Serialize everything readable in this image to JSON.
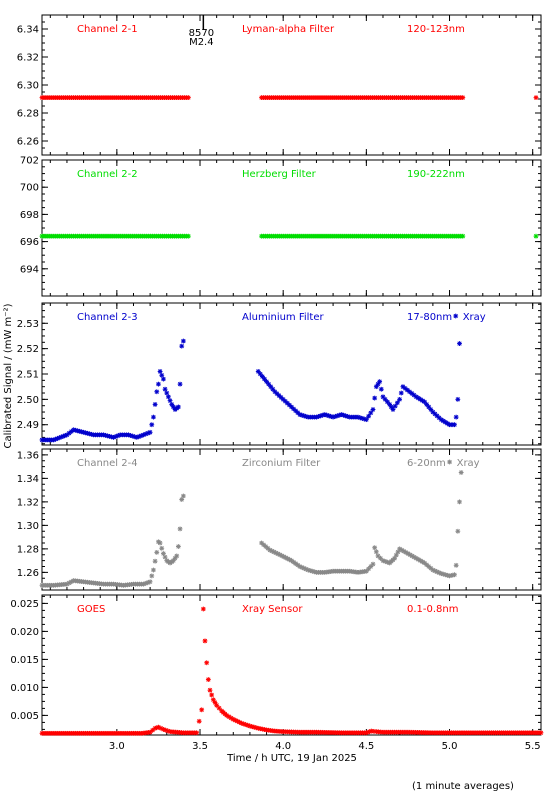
{
  "footer_note": "(1 minute averages)",
  "chart_data": {
    "type": "scatter",
    "xlabel": "Time / h UTC, 19 Jan 2025",
    "ylabel": "Calibrated Signal / (mW m⁻²)",
    "xlim": [
      2.55,
      5.55
    ],
    "x_ticks": [
      3.0,
      3.5,
      4.0,
      4.5,
      5.0,
      5.5
    ],
    "x_tick_labels": [
      "3.0",
      "3.5",
      "4.0",
      "4.5",
      "5.0",
      "5.5"
    ],
    "event_marker": {
      "x": 3.52,
      "label_top": "8570",
      "label_bottom": "M2.4"
    },
    "panels": [
      {
        "name": "Channel 2-1",
        "filter": "Lyman-alpha Filter",
        "band": "120-123nm",
        "band_suffix": "",
        "color": "#ff0000",
        "ylim": [
          6.25,
          6.35
        ],
        "y_ticks": [
          6.26,
          6.28,
          6.3,
          6.32,
          6.34
        ],
        "y_tick_labels": [
          "6.26",
          "6.28",
          "6.30",
          "6.32",
          "6.34"
        ],
        "points": [
          [
            2.55,
            6.291
          ],
          [
            3.0,
            6.291
          ],
          [
            3.43,
            6.291
          ],
          [
            3.87,
            6.291
          ],
          [
            4.5,
            6.291
          ],
          [
            5.08,
            6.291
          ],
          [
            5.52,
            6.291
          ]
        ],
        "gaps": [
          [
            3.43,
            3.87
          ],
          [
            5.08,
            5.52
          ]
        ]
      },
      {
        "name": "Channel 2-2",
        "filter": "Herzberg Filter",
        "band": "190-222nm",
        "band_suffix": "",
        "color": "#00dd00",
        "ylim": [
          692,
          702
        ],
        "y_ticks": [
          694,
          696,
          698,
          700,
          702
        ],
        "y_tick_labels": [
          "694",
          "696",
          "698",
          "700",
          "702"
        ],
        "points": [
          [
            2.55,
            696.4
          ],
          [
            3.0,
            696.4
          ],
          [
            3.43,
            696.4
          ],
          [
            3.87,
            696.4
          ],
          [
            4.5,
            696.4
          ],
          [
            5.08,
            696.4
          ],
          [
            5.52,
            696.4
          ]
        ],
        "gaps": [
          [
            3.43,
            3.87
          ],
          [
            5.08,
            5.52
          ]
        ]
      },
      {
        "name": "Channel 2-3",
        "filter": "Aluminium Filter",
        "band": "17-80nm",
        "band_suffix": "Xray",
        "color": "#0000cc",
        "ylim": [
          2.482,
          2.538
        ],
        "y_ticks": [
          2.49,
          2.5,
          2.51,
          2.52,
          2.53
        ],
        "y_tick_labels": [
          "2.49",
          "2.50",
          "2.51",
          "2.52",
          "2.53"
        ],
        "points": [
          [
            2.55,
            2.484
          ],
          [
            2.62,
            2.484
          ],
          [
            2.7,
            2.486
          ],
          [
            2.74,
            2.488
          ],
          [
            2.8,
            2.487
          ],
          [
            2.86,
            2.486
          ],
          [
            2.92,
            2.486
          ],
          [
            2.98,
            2.485
          ],
          [
            3.02,
            2.486
          ],
          [
            3.07,
            2.486
          ],
          [
            3.12,
            2.485
          ],
          [
            3.16,
            2.486
          ],
          [
            3.2,
            2.487
          ],
          [
            3.22,
            2.493
          ],
          [
            3.24,
            2.503
          ],
          [
            3.25,
            2.506
          ],
          [
            3.26,
            2.511
          ],
          [
            3.28,
            2.508
          ],
          [
            3.29,
            2.504
          ],
          [
            3.31,
            2.501
          ],
          [
            3.33,
            2.498
          ],
          [
            3.35,
            2.496
          ],
          [
            3.37,
            2.497
          ],
          [
            3.38,
            2.506
          ],
          [
            3.39,
            2.521
          ],
          [
            3.4,
            2.523
          ],
          [
            3.85,
            2.511
          ],
          [
            3.9,
            2.507
          ],
          [
            3.95,
            2.503
          ],
          [
            4.0,
            2.5
          ],
          [
            4.05,
            2.497
          ],
          [
            4.1,
            2.494
          ],
          [
            4.15,
            2.493
          ],
          [
            4.2,
            2.493
          ],
          [
            4.25,
            2.494
          ],
          [
            4.3,
            2.493
          ],
          [
            4.35,
            2.494
          ],
          [
            4.4,
            2.493
          ],
          [
            4.45,
            2.493
          ],
          [
            4.5,
            2.492
          ],
          [
            4.54,
            2.496
          ],
          [
            4.56,
            2.505
          ],
          [
            4.58,
            2.507
          ],
          [
            4.6,
            2.501
          ],
          [
            4.64,
            2.498
          ],
          [
            4.66,
            2.496
          ],
          [
            4.7,
            2.5
          ],
          [
            4.72,
            2.505
          ],
          [
            4.76,
            2.503
          ],
          [
            4.8,
            2.501
          ],
          [
            4.85,
            2.499
          ],
          [
            4.9,
            2.495
          ],
          [
            4.95,
            2.492
          ],
          [
            5.0,
            2.49
          ],
          [
            5.03,
            2.49
          ],
          [
            5.04,
            2.493
          ],
          [
            5.05,
            2.5
          ],
          [
            5.06,
            2.522
          ]
        ],
        "gaps": [
          [
            3.4,
            3.85
          ]
        ]
      },
      {
        "name": "Channel 2-4",
        "filter": "Zirconium Filter",
        "band": "6-20nm",
        "band_suffix": "Xray",
        "color": "#888888",
        "ylim": [
          1.245,
          1.365
        ],
        "y_ticks": [
          1.26,
          1.28,
          1.3,
          1.32,
          1.34,
          1.36
        ],
        "y_tick_labels": [
          "1.26",
          "1.28",
          "1.30",
          "1.32",
          "1.34",
          "1.36"
        ],
        "points": [
          [
            2.55,
            1.249
          ],
          [
            2.62,
            1.249
          ],
          [
            2.7,
            1.25
          ],
          [
            2.74,
            1.253
          ],
          [
            2.8,
            1.252
          ],
          [
            2.86,
            1.251
          ],
          [
            2.92,
            1.25
          ],
          [
            2.98,
            1.25
          ],
          [
            3.04,
            1.249
          ],
          [
            3.1,
            1.25
          ],
          [
            3.16,
            1.25
          ],
          [
            3.2,
            1.252
          ],
          [
            3.22,
            1.262
          ],
          [
            3.24,
            1.277
          ],
          [
            3.25,
            1.286
          ],
          [
            3.26,
            1.285
          ],
          [
            3.28,
            1.276
          ],
          [
            3.3,
            1.27
          ],
          [
            3.32,
            1.268
          ],
          [
            3.34,
            1.27
          ],
          [
            3.36,
            1.274
          ],
          [
            3.37,
            1.282
          ],
          [
            3.38,
            1.297
          ],
          [
            3.39,
            1.322
          ],
          [
            3.4,
            1.325
          ],
          [
            3.87,
            1.285
          ],
          [
            3.92,
            1.279
          ],
          [
            3.98,
            1.275
          ],
          [
            4.05,
            1.27
          ],
          [
            4.1,
            1.265
          ],
          [
            4.15,
            1.262
          ],
          [
            4.2,
            1.26
          ],
          [
            4.25,
            1.26
          ],
          [
            4.3,
            1.261
          ],
          [
            4.35,
            1.261
          ],
          [
            4.4,
            1.261
          ],
          [
            4.45,
            1.26
          ],
          [
            4.5,
            1.261
          ],
          [
            4.54,
            1.267
          ],
          [
            4.55,
            1.281
          ],
          [
            4.57,
            1.274
          ],
          [
            4.6,
            1.27
          ],
          [
            4.64,
            1.268
          ],
          [
            4.67,
            1.272
          ],
          [
            4.7,
            1.28
          ],
          [
            4.75,
            1.276
          ],
          [
            4.8,
            1.272
          ],
          [
            4.85,
            1.268
          ],
          [
            4.9,
            1.262
          ],
          [
            4.95,
            1.259
          ],
          [
            5.0,
            1.257
          ],
          [
            5.03,
            1.258
          ],
          [
            5.04,
            1.266
          ],
          [
            5.05,
            1.295
          ],
          [
            5.07,
            1.345
          ]
        ],
        "gaps": [
          [
            3.4,
            3.87
          ]
        ]
      },
      {
        "name": "GOES",
        "filter": "Xray Sensor",
        "band": "0.1-0.8nm",
        "band_suffix": "",
        "color": "#ff0000",
        "ylim": [
          0.0015,
          0.0265
        ],
        "y_ticks": [
          0.005,
          0.01,
          0.015,
          0.02,
          0.025
        ],
        "y_tick_labels": [
          "0.005",
          "0.010",
          "0.015",
          "0.020",
          "0.025"
        ],
        "points": [
          [
            2.55,
            0.0018
          ],
          [
            2.8,
            0.0018
          ],
          [
            3.0,
            0.0018
          ],
          [
            3.15,
            0.0018
          ],
          [
            3.2,
            0.002
          ],
          [
            3.23,
            0.0027
          ],
          [
            3.25,
            0.0029
          ],
          [
            3.28,
            0.0025
          ],
          [
            3.32,
            0.0021
          ],
          [
            3.4,
            0.0019
          ],
          [
            3.48,
            0.0019
          ],
          [
            3.51,
            0.006
          ],
          [
            3.52,
            0.024
          ],
          [
            3.53,
            0.0183
          ],
          [
            3.54,
            0.0144
          ],
          [
            3.55,
            0.0114
          ],
          [
            3.56,
            0.0095
          ],
          [
            3.58,
            0.0078
          ],
          [
            3.6,
            0.0068
          ],
          [
            3.63,
            0.0058
          ],
          [
            3.66,
            0.005
          ],
          [
            3.7,
            0.0043
          ],
          [
            3.75,
            0.0036
          ],
          [
            3.8,
            0.0031
          ],
          [
            3.85,
            0.0027
          ],
          [
            3.9,
            0.0024
          ],
          [
            3.95,
            0.0022
          ],
          [
            4.0,
            0.0021
          ],
          [
            4.1,
            0.002
          ],
          [
            4.2,
            0.002
          ],
          [
            4.35,
            0.0019
          ],
          [
            4.5,
            0.0019
          ],
          [
            4.53,
            0.0022
          ],
          [
            4.56,
            0.0021
          ],
          [
            4.6,
            0.002
          ],
          [
            4.75,
            0.002
          ],
          [
            4.9,
            0.0019
          ],
          [
            5.0,
            0.0019
          ],
          [
            5.1,
            0.0019
          ],
          [
            5.3,
            0.0019
          ],
          [
            5.55,
            0.0019
          ]
        ],
        "gaps": []
      }
    ]
  }
}
